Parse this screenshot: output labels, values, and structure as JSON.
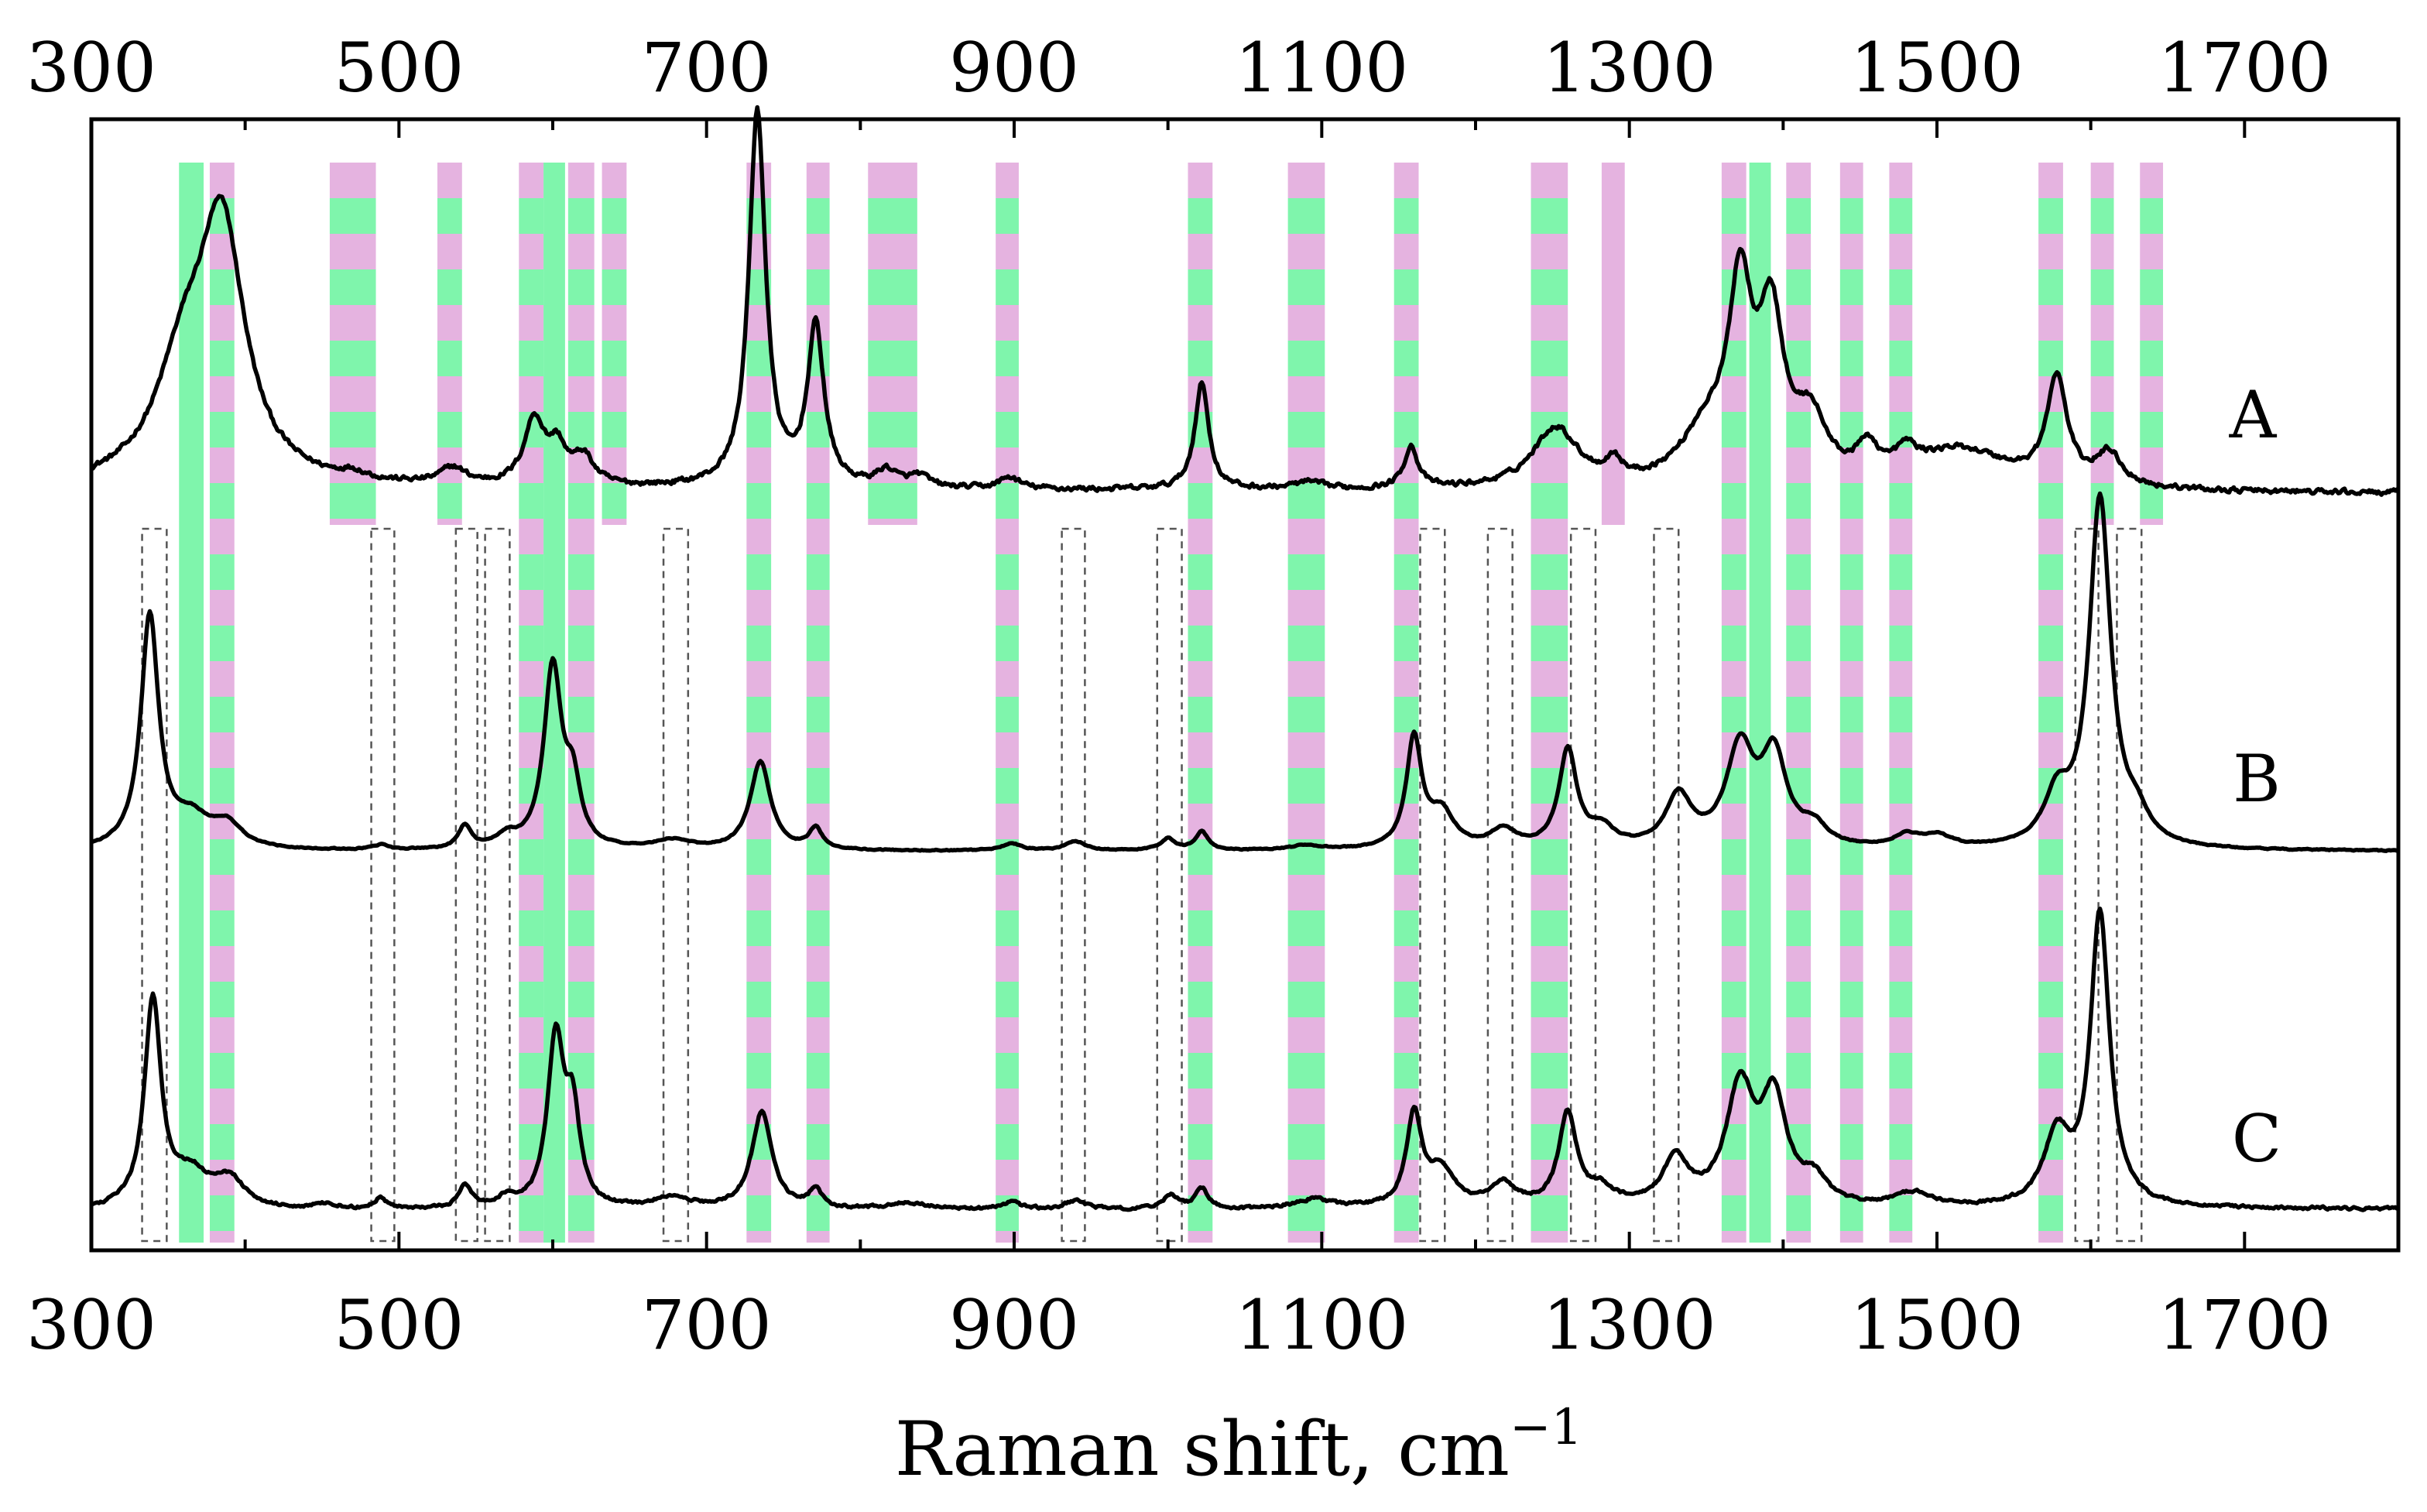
{
  "chart_data": {
    "type": "line",
    "title": "",
    "xlabel": "Raman shift, cm",
    "xlabel_superscript": "−1",
    "ylabel": "",
    "xlim": [
      300,
      1800
    ],
    "xticks": [
      300,
      500,
      700,
      900,
      1100,
      1300,
      1500,
      1700
    ],
    "x_tick_labels_top": [
      "300",
      "500",
      "700",
      "900",
      "1100",
      "1300",
      "1500",
      "1700"
    ],
    "x_tick_labels_bottom": [
      "300",
      "500",
      "700",
      "900",
      "1100",
      "1300",
      "1500",
      "1700"
    ],
    "colors": {
      "green": "#7ff5ac",
      "pink": "#e5b3e0",
      "line": "#000000",
      "dashed_box": "#555555"
    },
    "series": [
      {
        "name": "A",
        "label": "A",
        "offset": 2.2,
        "baseline_slope": -0.02,
        "noise": 0.018,
        "peaks": [
          {
            "x": 360,
            "h": 0.45,
            "w": 22
          },
          {
            "x": 385,
            "h": 1.05,
            "w": 18
          },
          {
            "x": 470,
            "h": 0.03,
            "w": 10
          },
          {
            "x": 535,
            "h": 0.07,
            "w": 10
          },
          {
            "x": 588,
            "h": 0.28,
            "w": 8
          },
          {
            "x": 603,
            "h": 0.15,
            "w": 7
          },
          {
            "x": 620,
            "h": 0.12,
            "w": 8
          },
          {
            "x": 733,
            "h": 1.62,
            "w": 6.5
          },
          {
            "x": 771,
            "h": 0.68,
            "w": 6.5
          },
          {
            "x": 817,
            "h": 0.07,
            "w": 8
          },
          {
            "x": 838,
            "h": 0.05,
            "w": 8
          },
          {
            "x": 897,
            "h": 0.05,
            "w": 8
          },
          {
            "x": 1022,
            "h": 0.46,
            "w": 5.5
          },
          {
            "x": 1091,
            "h": 0.03,
            "w": 12
          },
          {
            "x": 1158,
            "h": 0.18,
            "w": 5.5
          },
          {
            "x": 1252,
            "h": 0.26,
            "w": 18
          },
          {
            "x": 1290,
            "h": 0.08,
            "w": 6
          },
          {
            "x": 1350,
            "h": 0.22,
            "w": 20
          },
          {
            "x": 1372,
            "h": 0.78,
            "w": 9
          },
          {
            "x": 1392,
            "h": 0.68,
            "w": 10
          },
          {
            "x": 1418,
            "h": 0.25,
            "w": 12
          },
          {
            "x": 1455,
            "h": 0.13,
            "w": 8
          },
          {
            "x": 1480,
            "h": 0.09,
            "w": 8
          },
          {
            "x": 1515,
            "h": 0.17,
            "w": 40
          },
          {
            "x": 1578,
            "h": 0.45,
            "w": 8
          },
          {
            "x": 1612,
            "h": 0.14,
            "w": 10
          }
        ]
      },
      {
        "name": "B",
        "label": "B",
        "offset": 1.1,
        "baseline_slope": 0.0,
        "noise": 0.004,
        "peaks": [
          {
            "x": 338,
            "h": 1.0,
            "w": 7
          },
          {
            "x": 365,
            "h": 0.12,
            "w": 14
          },
          {
            "x": 388,
            "h": 0.1,
            "w": 12
          },
          {
            "x": 488,
            "h": 0.02,
            "w": 6
          },
          {
            "x": 543,
            "h": 0.1,
            "w": 5
          },
          {
            "x": 570,
            "h": 0.05,
            "w": 8
          },
          {
            "x": 600,
            "h": 0.78,
            "w": 7
          },
          {
            "x": 613,
            "h": 0.25,
            "w": 6
          },
          {
            "x": 678,
            "h": 0.04,
            "w": 15
          },
          {
            "x": 735,
            "h": 0.38,
            "w": 8
          },
          {
            "x": 771,
            "h": 0.09,
            "w": 5
          },
          {
            "x": 898,
            "h": 0.03,
            "w": 8
          },
          {
            "x": 940,
            "h": 0.04,
            "w": 8
          },
          {
            "x": 1000,
            "h": 0.05,
            "w": 6
          },
          {
            "x": 1022,
            "h": 0.08,
            "w": 5
          },
          {
            "x": 1090,
            "h": 0.02,
            "w": 12
          },
          {
            "x": 1160,
            "h": 0.47,
            "w": 6
          },
          {
            "x": 1178,
            "h": 0.15,
            "w": 10
          },
          {
            "x": 1218,
            "h": 0.08,
            "w": 10
          },
          {
            "x": 1260,
            "h": 0.42,
            "w": 7
          },
          {
            "x": 1282,
            "h": 0.08,
            "w": 10
          },
          {
            "x": 1332,
            "h": 0.22,
            "w": 10
          },
          {
            "x": 1372,
            "h": 0.42,
            "w": 11
          },
          {
            "x": 1394,
            "h": 0.38,
            "w": 10
          },
          {
            "x": 1420,
            "h": 0.08,
            "w": 10
          },
          {
            "x": 1480,
            "h": 0.05,
            "w": 10
          },
          {
            "x": 1500,
            "h": 0.05,
            "w": 12
          },
          {
            "x": 1578,
            "h": 0.2,
            "w": 10
          },
          {
            "x": 1606,
            "h": 1.5,
            "w": 8.5
          },
          {
            "x": 1630,
            "h": 0.1,
            "w": 10
          }
        ]
      },
      {
        "name": "C",
        "label": "C",
        "offset": 0.0,
        "baseline_slope": 0.01,
        "noise": 0.01,
        "peaks": [
          {
            "x": 340,
            "h": 0.9,
            "w": 6.5
          },
          {
            "x": 365,
            "h": 0.14,
            "w": 14
          },
          {
            "x": 390,
            "h": 0.12,
            "w": 12
          },
          {
            "x": 452,
            "h": 0.02,
            "w": 10
          },
          {
            "x": 488,
            "h": 0.05,
            "w": 5
          },
          {
            "x": 543,
            "h": 0.1,
            "w": 5
          },
          {
            "x": 570,
            "h": 0.04,
            "w": 8
          },
          {
            "x": 602,
            "h": 0.72,
            "w": 6.5
          },
          {
            "x": 613,
            "h": 0.38,
            "w": 5.5
          },
          {
            "x": 678,
            "h": 0.05,
            "w": 15
          },
          {
            "x": 736,
            "h": 0.42,
            "w": 8
          },
          {
            "x": 771,
            "h": 0.08,
            "w": 5
          },
          {
            "x": 830,
            "h": 0.03,
            "w": 15
          },
          {
            "x": 898,
            "h": 0.03,
            "w": 8
          },
          {
            "x": 940,
            "h": 0.04,
            "w": 8
          },
          {
            "x": 1002,
            "h": 0.06,
            "w": 6
          },
          {
            "x": 1022,
            "h": 0.09,
            "w": 5
          },
          {
            "x": 1095,
            "h": 0.04,
            "w": 15
          },
          {
            "x": 1160,
            "h": 0.4,
            "w": 6
          },
          {
            "x": 1178,
            "h": 0.16,
            "w": 10
          },
          {
            "x": 1218,
            "h": 0.1,
            "w": 10
          },
          {
            "x": 1260,
            "h": 0.4,
            "w": 7
          },
          {
            "x": 1282,
            "h": 0.07,
            "w": 10
          },
          {
            "x": 1330,
            "h": 0.2,
            "w": 10
          },
          {
            "x": 1372,
            "h": 0.5,
            "w": 11
          },
          {
            "x": 1394,
            "h": 0.44,
            "w": 10
          },
          {
            "x": 1420,
            "h": 0.1,
            "w": 10
          },
          {
            "x": 1485,
            "h": 0.06,
            "w": 14
          },
          {
            "x": 1578,
            "h": 0.3,
            "w": 10
          },
          {
            "x": 1606,
            "h": 1.26,
            "w": 7.5
          }
        ]
      }
    ],
    "bands": [
      {
        "start": 357,
        "end": 373,
        "pattern": "green"
      },
      {
        "start": 377,
        "end": 393,
        "pattern": "stripe"
      },
      {
        "start": 455,
        "end": 485,
        "pattern": "stripe",
        "short": true
      },
      {
        "start": 525,
        "end": 541,
        "pattern": "stripe",
        "short": true
      },
      {
        "start": 578,
        "end": 594,
        "pattern": "stripe"
      },
      {
        "start": 594,
        "end": 608,
        "pattern": "green"
      },
      {
        "start": 610,
        "end": 627,
        "pattern": "stripe"
      },
      {
        "start": 632,
        "end": 648,
        "pattern": "stripe",
        "short": true
      },
      {
        "start": 726,
        "end": 742,
        "pattern": "stripe"
      },
      {
        "start": 765,
        "end": 780,
        "pattern": "stripe"
      },
      {
        "start": 805,
        "end": 837,
        "pattern": "stripe",
        "short": true
      },
      {
        "start": 888,
        "end": 903,
        "pattern": "stripe"
      },
      {
        "start": 1013,
        "end": 1029,
        "pattern": "stripe"
      },
      {
        "start": 1078,
        "end": 1102,
        "pattern": "stripe"
      },
      {
        "start": 1147,
        "end": 1163,
        "pattern": "stripe"
      },
      {
        "start": 1236,
        "end": 1260,
        "pattern": "stripe"
      },
      {
        "start": 1282,
        "end": 1297,
        "pattern": "pink",
        "short": true
      },
      {
        "start": 1360,
        "end": 1376,
        "pattern": "stripe"
      },
      {
        "start": 1378,
        "end": 1392,
        "pattern": "green"
      },
      {
        "start": 1402,
        "end": 1418,
        "pattern": "stripe"
      },
      {
        "start": 1437,
        "end": 1452,
        "pattern": "stripe"
      },
      {
        "start": 1469,
        "end": 1484,
        "pattern": "stripe"
      },
      {
        "start": 1566,
        "end": 1582,
        "pattern": "stripe"
      },
      {
        "start": 1600,
        "end": 1615,
        "pattern": "stripe",
        "short": true
      },
      {
        "start": 1632,
        "end": 1647,
        "pattern": "stripe",
        "short": true
      }
    ],
    "dashed_boxes": [
      {
        "start": 333,
        "end": 349
      },
      {
        "start": 482,
        "end": 497
      },
      {
        "start": 537,
        "end": 551
      },
      {
        "start": 556,
        "end": 572
      },
      {
        "start": 672,
        "end": 688
      },
      {
        "start": 931,
        "end": 946
      },
      {
        "start": 993,
        "end": 1009
      },
      {
        "start": 1164,
        "end": 1180
      },
      {
        "start": 1208,
        "end": 1224
      },
      {
        "start": 1262,
        "end": 1278
      },
      {
        "start": 1316,
        "end": 1332
      },
      {
        "start": 1590,
        "end": 1605
      },
      {
        "start": 1617,
        "end": 1633
      }
    ]
  }
}
